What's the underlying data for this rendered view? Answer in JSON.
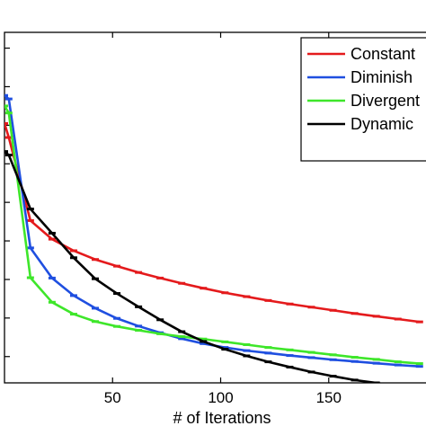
{
  "chart_data": {
    "type": "line",
    "title": "",
    "xlabel": "# of Iterations",
    "ylabel": "",
    "xlim": [
      0,
      195
    ],
    "ylim": [
      0,
      1
    ],
    "x_ticks": [
      50,
      100,
      150
    ],
    "x_tick_labels": [
      "50",
      "100",
      "150"
    ],
    "y_ticks": [
      0.075,
      0.185,
      0.295,
      0.405,
      0.515,
      0.625,
      0.735,
      0.845,
      0.955
    ],
    "grid": false,
    "legend_position": "top-right",
    "x": [
      0,
      2,
      12,
      22,
      32,
      42,
      52,
      62,
      72,
      82,
      92,
      102,
      112,
      122,
      132,
      142,
      152,
      162,
      172,
      182,
      192
    ],
    "series": [
      {
        "name": "Constant",
        "color": "#e41a1c",
        "values": [
          0.74,
          0.7,
          0.463,
          0.41,
          0.377,
          0.352,
          0.333,
          0.315,
          0.299,
          0.284,
          0.27,
          0.257,
          0.246,
          0.235,
          0.225,
          0.216,
          0.207,
          0.198,
          0.19,
          0.182,
          0.174
        ]
      },
      {
        "name": "Diminish",
        "color": "#1f4fe0",
        "values": [
          0.82,
          0.81,
          0.385,
          0.299,
          0.249,
          0.213,
          0.184,
          0.162,
          0.143,
          0.126,
          0.112,
          0.101,
          0.092,
          0.085,
          0.078,
          0.072,
          0.066,
          0.061,
          0.056,
          0.051,
          0.047
        ]
      },
      {
        "name": "Divergent",
        "color": "#3ee62a",
        "values": [
          0.79,
          0.77,
          0.3,
          0.23,
          0.196,
          0.175,
          0.161,
          0.15,
          0.14,
          0.132,
          0.125,
          0.117,
          0.109,
          0.101,
          0.094,
          0.087,
          0.08,
          0.073,
          0.067,
          0.06,
          0.055
        ]
      },
      {
        "name": "Dynamic",
        "color": "#000000",
        "values": [
          0.66,
          0.65,
          0.496,
          0.427,
          0.357,
          0.297,
          0.255,
          0.217,
          0.18,
          0.146,
          0.118,
          0.096,
          0.077,
          0.06,
          0.045,
          0.031,
          0.019,
          0.008,
          0.0,
          -0.01,
          -0.02
        ]
      }
    ]
  }
}
